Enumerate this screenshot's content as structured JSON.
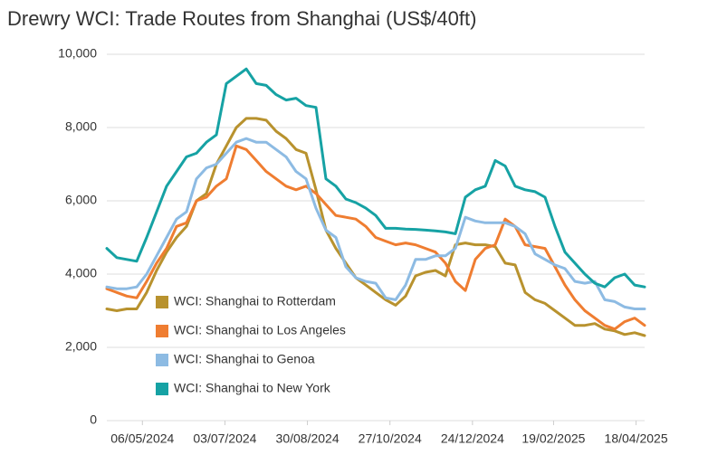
{
  "chart_data": {
    "type": "line",
    "title": "Drewry WCI: Trade Routes from Shanghai (US$/40ft)",
    "x": [
      "11/04/2024",
      "18/04/2024",
      "25/04/2024",
      "02/05/2024",
      "09/05/2024",
      "16/05/2024",
      "23/05/2024",
      "30/05/2024",
      "06/06/2024",
      "13/06/2024",
      "20/06/2024",
      "27/06/2024",
      "04/07/2024",
      "11/07/2024",
      "18/07/2024",
      "25/07/2024",
      "01/08/2024",
      "08/08/2024",
      "15/08/2024",
      "22/08/2024",
      "29/08/2024",
      "05/09/2024",
      "12/09/2024",
      "19/09/2024",
      "26/09/2024",
      "03/10/2024",
      "10/10/2024",
      "17/10/2024",
      "24/10/2024",
      "31/10/2024",
      "07/11/2024",
      "14/11/2024",
      "21/11/2024",
      "28/11/2024",
      "05/12/2024",
      "12/12/2024",
      "19/12/2024",
      "26/12/2024",
      "02/01/2025",
      "09/01/2025",
      "16/01/2025",
      "23/01/2025",
      "30/01/2025",
      "06/02/2025",
      "13/02/2025",
      "20/02/2025",
      "27/02/2025",
      "06/03/2025",
      "13/03/2025",
      "20/03/2025",
      "27/03/2025",
      "03/04/2025",
      "10/04/2025",
      "17/04/2025",
      "24/04/2025"
    ],
    "xlim": [
      "11/04/2024",
      "24/04/2025"
    ],
    "xticks": [
      "06/05/2024",
      "03/07/2024",
      "30/08/2024",
      "27/10/2024",
      "24/12/2024",
      "19/02/2025",
      "18/04/2025"
    ],
    "ylim": [
      0,
      10000
    ],
    "yticks": [
      0,
      {
        "value": 2000,
        "label": "2,000"
      },
      {
        "value": 4000,
        "label": "4,000"
      },
      {
        "value": 6000,
        "label": "6,000"
      },
      {
        "value": 8000,
        "label": "8,000"
      },
      {
        "value": 10000,
        "label": "10,000"
      }
    ],
    "grid": true,
    "legend_position": "lower-left",
    "series": [
      {
        "name": "WCI: Shanghai to Rotterdam",
        "color": "#b8922e",
        "values": [
          3050,
          3000,
          3050,
          3050,
          3500,
          4100,
          4600,
          5000,
          5300,
          6000,
          6200,
          7000,
          7500,
          8000,
          8250,
          8250,
          8200,
          7900,
          7700,
          7400,
          7300,
          6300,
          5200,
          4700,
          4300,
          3900,
          3700,
          3500,
          3300,
          3150,
          3400,
          3950,
          4050,
          4100,
          3950,
          4800,
          4850,
          4800,
          4800,
          4750,
          4300,
          4250,
          3500,
          3300,
          3200,
          3000,
          2800,
          2600,
          2600,
          2650,
          2500,
          2450,
          2350,
          2400,
          2320
        ]
      },
      {
        "name": "WCI: Shanghai to Los Angeles",
        "color": "#ef7d31",
        "values": [
          3600,
          3500,
          3400,
          3350,
          3800,
          4300,
          4700,
          5300,
          5400,
          6000,
          6100,
          6400,
          6600,
          7500,
          7400,
          7100,
          6800,
          6600,
          6400,
          6300,
          6400,
          6200,
          5900,
          5600,
          5550,
          5500,
          5300,
          5000,
          4900,
          4800,
          4850,
          4800,
          4700,
          4600,
          4300,
          3800,
          3550,
          4400,
          4700,
          4800,
          5500,
          5300,
          4800,
          4750,
          4700,
          4200,
          3700,
          3300,
          3000,
          2800,
          2600,
          2500,
          2700,
          2800,
          2600
        ]
      },
      {
        "name": "WCI: Shanghai to Genoa",
        "color": "#8dbbe3",
        "values": [
          3650,
          3600,
          3600,
          3650,
          4000,
          4500,
          5000,
          5500,
          5700,
          6600,
          6900,
          7000,
          7300,
          7600,
          7700,
          7600,
          7600,
          7400,
          7200,
          6800,
          6600,
          5800,
          5200,
          5000,
          4200,
          3900,
          3800,
          3750,
          3350,
          3300,
          3700,
          4400,
          4400,
          4500,
          4500,
          4700,
          5550,
          5450,
          5400,
          5400,
          5400,
          5300,
          5100,
          4550,
          4400,
          4250,
          4150,
          3800,
          3750,
          3800,
          3300,
          3250,
          3100,
          3050,
          3050
        ]
      },
      {
        "name": "WCI: Shanghai to New York",
        "color": "#16a2a4",
        "values": [
          4700,
          4450,
          4400,
          4350,
          5000,
          5700,
          6400,
          6800,
          7200,
          7300,
          7600,
          7800,
          9200,
          9400,
          9600,
          9200,
          9150,
          8900,
          8750,
          8800,
          8600,
          8550,
          6600,
          6400,
          6050,
          5950,
          5800,
          5600,
          5250,
          5250,
          5230,
          5220,
          5200,
          5180,
          5150,
          5100,
          6100,
          6300,
          6400,
          7100,
          6950,
          6400,
          6300,
          6250,
          6100,
          5300,
          4600,
          4300,
          4000,
          3750,
          3650,
          3900,
          4000,
          3700,
          3650
        ]
      }
    ]
  }
}
